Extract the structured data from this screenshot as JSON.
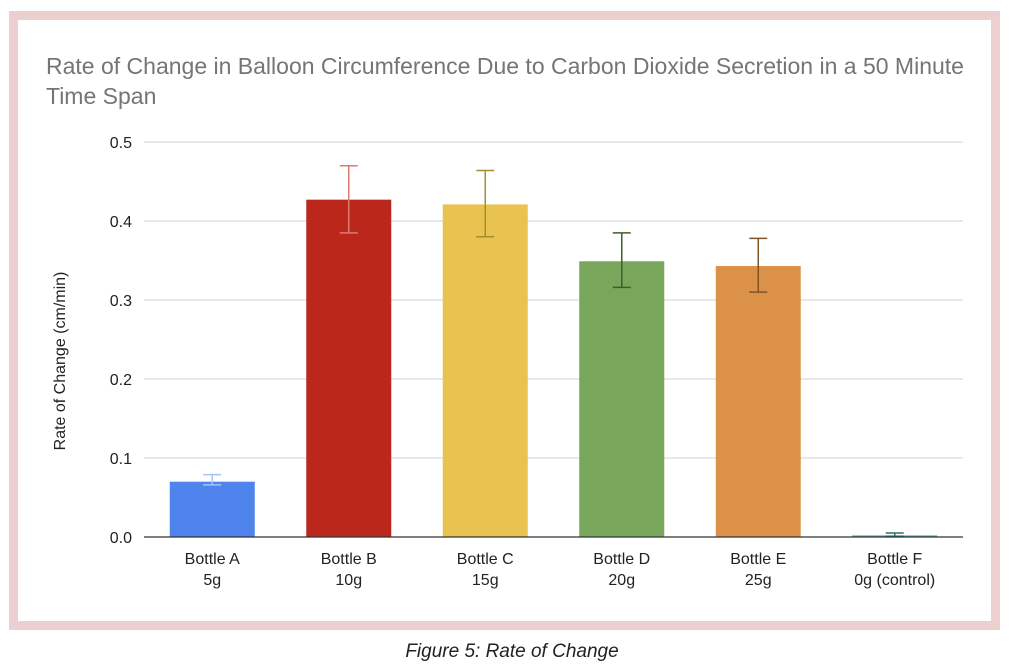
{
  "chart_data": {
    "type": "bar",
    "title": "Rate of Change in Balloon Circumference Due to Carbon Dioxide Secretion in a 50 Minute Time Span",
    "xlabel": "",
    "ylabel": "Rate of Change (cm/min)",
    "ylim": [
      0,
      0.5
    ],
    "yticks": [
      "0.0",
      "0.1",
      "0.2",
      "0.3",
      "0.4",
      "0.5"
    ],
    "grid": true,
    "categories": [
      [
        "Bottle A",
        "5g"
      ],
      [
        "Bottle B",
        "10g"
      ],
      [
        "Bottle C",
        "15g"
      ],
      [
        "Bottle D",
        "20g"
      ],
      [
        "Bottle E",
        "25g"
      ],
      [
        "Bottle F",
        "0g (control)"
      ]
    ],
    "values": [
      0.07,
      0.427,
      0.421,
      0.349,
      0.343,
      0.002
    ],
    "error_low": [
      0.066,
      0.385,
      0.38,
      0.316,
      0.31,
      0.001
    ],
    "error_high": [
      0.079,
      0.47,
      0.464,
      0.385,
      0.378,
      0.005
    ],
    "colors": [
      "#4f84ed",
      "#bc271c",
      "#e8c34f",
      "#78a65a",
      "#dc9148",
      "#4da5a6"
    ],
    "error_colors": [
      "#a8c3f5",
      "#dd7a72",
      "#a88d2f",
      "#3f5e2c",
      "#7f5326",
      "#2b6f6f"
    ]
  },
  "caption": "Figure 5: Rate of Change"
}
